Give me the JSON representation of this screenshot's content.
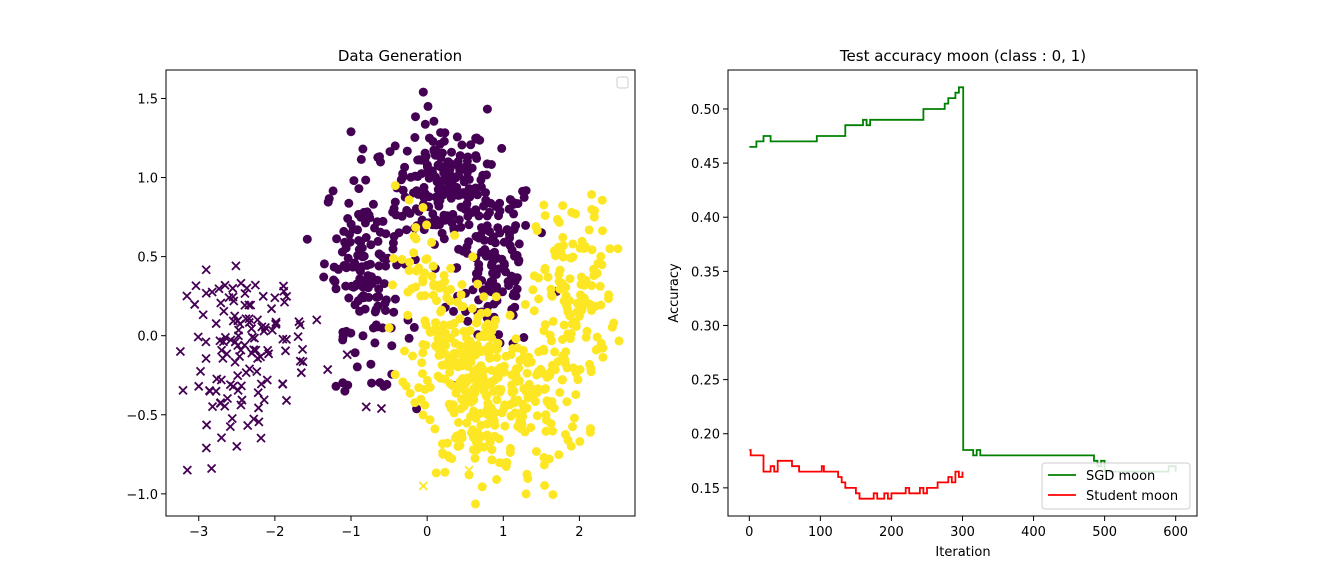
{
  "chart_data": [
    {
      "type": "scatter",
      "title": "Data Generation",
      "xlabel": "",
      "ylabel": "",
      "xlim": [
        -3.43,
        2.73
      ],
      "ylim": [
        -1.14,
        1.68
      ],
      "xticks": [
        -3,
        -2,
        -1,
        0,
        1,
        2
      ],
      "yticks": [
        -1.0,
        -0.5,
        0.0,
        0.5,
        1.0,
        1.5
      ],
      "xtick_labels": [
        "−3",
        "−2",
        "−1",
        "0",
        "1",
        "2"
      ],
      "ytick_labels": [
        "−1.0",
        "−0.5",
        "0.0",
        "0.5",
        "1.0",
        "1.5"
      ],
      "grid": false,
      "legend": "top-right (empty)",
      "colors": {
        "class0": "#440154",
        "class1": "#fde725"
      },
      "series": [
        {
          "marker": "circle",
          "color": "#440154",
          "clusters": [
            {
              "cx": 0.2,
              "cy": 0.95,
              "sx": 0.3,
              "sy": 0.2,
              "n": 180
            },
            {
              "cx": -0.85,
              "cy": 0.55,
              "sx": 0.25,
              "sy": 0.25,
              "n": 110
            },
            {
              "cx": -0.7,
              "cy": 0.05,
              "sx": 0.25,
              "sy": 0.2,
              "n": 40
            },
            {
              "cx": 0.9,
              "cy": 0.45,
              "sx": 0.25,
              "sy": 0.3,
              "n": 130
            }
          ],
          "points": [
            [
              -0.05,
              1.54
            ],
            [
              -1.0,
              1.29
            ],
            [
              -1.08,
              -0.35
            ],
            [
              -0.73,
              -0.3
            ],
            [
              1.7,
              0.28
            ],
            [
              1.15,
              0.18
            ],
            [
              0.4,
              0.25
            ]
          ]
        },
        {
          "marker": "circle",
          "color": "#fde725",
          "clusters": [
            {
              "cx": 0.7,
              "cy": -0.35,
              "sx": 0.35,
              "sy": 0.25,
              "n": 240
            },
            {
              "cx": 0.2,
              "cy": 0.05,
              "sx": 0.25,
              "sy": 0.25,
              "n": 90
            },
            {
              "cx": 1.95,
              "cy": 0.25,
              "sx": 0.25,
              "sy": 0.3,
              "n": 110
            },
            {
              "cx": 1.5,
              "cy": -0.35,
              "sx": 0.3,
              "sy": 0.25,
              "n": 90
            },
            {
              "cx": -0.1,
              "cy": 0.5,
              "sx": 0.2,
              "sy": 0.2,
              "n": 25
            }
          ],
          "points": [
            [
              1.3,
              -1.0
            ],
            [
              0.55,
              -0.88
            ],
            [
              1.85,
              -0.66
            ],
            [
              2.2,
              0.79
            ],
            [
              1.95,
              0.77
            ],
            [
              1.55,
              0.76
            ],
            [
              2.45,
              0.08
            ],
            [
              2.4,
              0.55
            ],
            [
              -0.5,
              0.05
            ]
          ]
        },
        {
          "marker": "x",
          "color": "#440154",
          "clusters": [
            {
              "cx": -2.35,
              "cy": 0.0,
              "sx": 0.4,
              "sy": 0.2,
              "n": 100
            },
            {
              "cx": -2.45,
              "cy": -0.4,
              "sx": 0.3,
              "sy": 0.15,
              "n": 25
            }
          ],
          "points": [
            [
              -3.15,
              -0.85
            ],
            [
              -2.9,
              -0.71
            ],
            [
              -2.5,
              -0.7
            ],
            [
              -0.8,
              -0.45
            ],
            [
              -0.6,
              -0.46
            ],
            [
              -1.05,
              -0.12
            ],
            [
              -1.45,
              0.1
            ],
            [
              -3.0,
              -0.32
            ],
            [
              -2.0,
              0.24
            ],
            [
              -2.1,
              -0.28
            ]
          ]
        },
        {
          "marker": "x",
          "color": "#fde725",
          "points": [
            [
              -0.05,
              -0.95
            ],
            [
              0.2,
              -0.71
            ],
            [
              0.55,
              -0.85
            ],
            [
              0.35,
              -0.45
            ]
          ]
        }
      ]
    },
    {
      "type": "line",
      "title": "Test accuracy moon (class : 0, 1)",
      "xlabel": "Iteration",
      "ylabel": "Accuracy",
      "xlim": [
        -30,
        630
      ],
      "ylim": [
        0.124,
        0.536
      ],
      "xticks": [
        0,
        100,
        200,
        300,
        400,
        500,
        600
      ],
      "yticks": [
        0.15,
        0.2,
        0.25,
        0.3,
        0.35,
        0.4,
        0.45,
        0.5
      ],
      "xtick_labels": [
        "0",
        "100",
        "200",
        "300",
        "400",
        "500",
        "600"
      ],
      "ytick_labels": [
        "0.15",
        "0.20",
        "0.25",
        "0.30",
        "0.35",
        "0.40",
        "0.45",
        "0.50"
      ],
      "grid": false,
      "legend": "bottom-right",
      "series": [
        {
          "name": "SGD moon",
          "color": "#008000",
          "x": [
            0,
            5,
            10,
            15,
            20,
            25,
            30,
            35,
            90,
            95,
            100,
            130,
            135,
            140,
            150,
            160,
            165,
            170,
            240,
            245,
            270,
            275,
            280,
            285,
            290,
            295,
            300,
            301,
            310,
            315,
            320,
            325,
            330,
            480,
            485,
            490,
            495,
            500,
            560,
            570,
            585,
            590,
            600
          ],
          "y": [
            0.465,
            0.465,
            0.47,
            0.47,
            0.475,
            0.475,
            0.47,
            0.47,
            0.47,
            0.475,
            0.475,
            0.475,
            0.485,
            0.485,
            0.485,
            0.49,
            0.485,
            0.49,
            0.49,
            0.5,
            0.5,
            0.505,
            0.51,
            0.51,
            0.515,
            0.52,
            0.52,
            0.185,
            0.185,
            0.18,
            0.185,
            0.18,
            0.18,
            0.18,
            0.175,
            0.17,
            0.175,
            0.165,
            0.165,
            0.165,
            0.165,
            0.17,
            0.165
          ]
        },
        {
          "name": "Student moon",
          "color": "#ff0000",
          "x": [
            0,
            2,
            10,
            20,
            25,
            30,
            35,
            40,
            45,
            60,
            70,
            100,
            102,
            105,
            125,
            130,
            135,
            140,
            150,
            155,
            160,
            175,
            180,
            190,
            195,
            200,
            220,
            225,
            230,
            240,
            245,
            250,
            265,
            270,
            280,
            285,
            290,
            295,
            300
          ],
          "y": [
            0.185,
            0.18,
            0.18,
            0.165,
            0.165,
            0.17,
            0.165,
            0.175,
            0.175,
            0.17,
            0.165,
            0.165,
            0.17,
            0.165,
            0.16,
            0.155,
            0.15,
            0.15,
            0.145,
            0.14,
            0.14,
            0.145,
            0.14,
            0.145,
            0.14,
            0.145,
            0.15,
            0.145,
            0.145,
            0.15,
            0.145,
            0.15,
            0.155,
            0.155,
            0.16,
            0.155,
            0.165,
            0.16,
            0.165
          ]
        }
      ]
    }
  ]
}
